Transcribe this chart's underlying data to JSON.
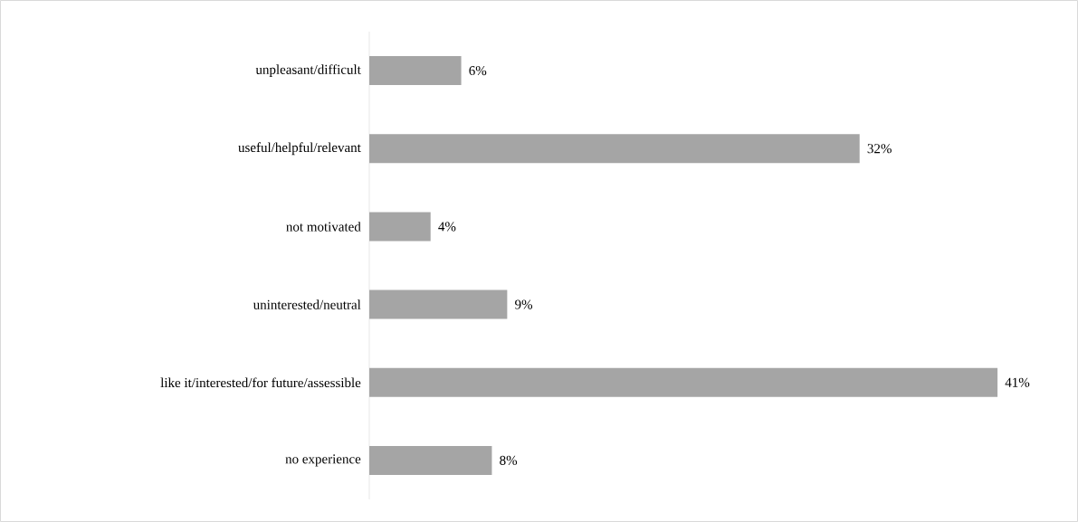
{
  "chart_data": {
    "type": "bar",
    "orientation": "horizontal",
    "categories": [
      "unpleasant/difficult",
      "useful/helpful/relevant",
      "not motivated",
      "uninterested/neutral",
      "like it/interested/for future/assessible",
      "no experience"
    ],
    "values": [
      6,
      32,
      4,
      9,
      41,
      8
    ],
    "value_labels": [
      "6%",
      "32%",
      "4%",
      "9%",
      "41%",
      "8%"
    ],
    "color": "#a5a5a5"
  }
}
